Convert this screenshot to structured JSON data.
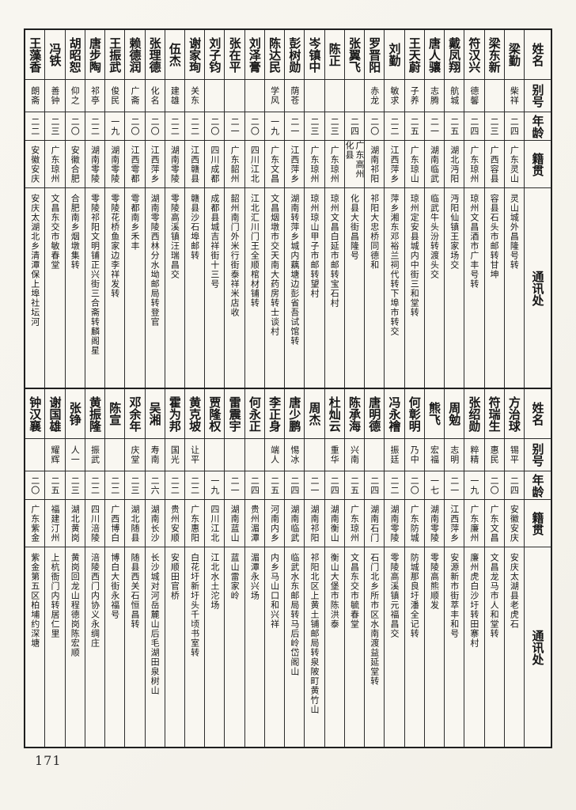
{
  "page_number": "171",
  "table": {
    "headers": {
      "name": "姓名",
      "alias": "别号",
      "age": "年龄",
      "native": "籍贯",
      "address": "通讯处"
    },
    "sections": [
      {
        "entries": [
          {
            "name": "梁勤",
            "alias": "柴祥",
            "age": "二四",
            "native": "广东灵山",
            "address": "灵山城外昌隆号转"
          },
          {
            "name": "梁东新",
            "alias": "",
            "age": "二三",
            "native": "广西容县",
            "address": "容县石头市邮转甘坤"
          },
          {
            "name": "符汉兴",
            "alias": "德馨",
            "age": "二四",
            "native": "广东琼州",
            "address": "琼州文昌酒市广丰号转"
          },
          {
            "name": "戴凤翔",
            "alias": "航城",
            "age": "二五",
            "native": "湖北沔阳",
            "address": "沔阳仙镇王家场交"
          },
          {
            "name": "唐人骧",
            "alias": "志腾",
            "age": "二一",
            "native": "湖南临武",
            "address": "临武牛头汾转渡头交"
          },
          {
            "name": "王天蔚",
            "alias": "子养",
            "age": "二五",
            "native": "广东琼山",
            "address": "琼州定安县城内中街三和堂转"
          },
          {
            "name": "刘勤",
            "alias": "敏求",
            "age": "二二",
            "native": "江西萍乡",
            "address": "萍乡湘东邓裕兰祠代转下埠市转交"
          },
          {
            "name": "罗晋阳",
            "alias": "赤龙",
            "age": "二〇",
            "native": "湖南祁阳",
            "address": "祁阳大忠桥同德和"
          },
          {
            "name": "张翼飞",
            "alias": "",
            "age": "二四",
            "native": "广东高州化县",
            "address": "化县大街昌隆号"
          },
          {
            "name": "陈正",
            "alias": "",
            "age": "二三",
            "native": "广东琼州",
            "address": "琼州文昌白延市邮转宝石村"
          },
          {
            "name": "岑镇中",
            "alias": "",
            "age": "二三",
            "native": "广东琼州",
            "address": "琼州琼山甲子市邮转望村"
          },
          {
            "name": "彭树勋",
            "alias": "荫苍",
            "age": "二一",
            "native": "江西萍乡",
            "address": "湖南转萍乡城内藕塘边彭省吾试馆转"
          },
          {
            "name": "陈达民",
            "alias": "学风",
            "age": "一九",
            "native": "广东文昌",
            "address": "文昌烟墩市交天南大药房转士谈村"
          },
          {
            "name": "刘泽膏",
            "alias": "",
            "age": "二〇",
            "native": "四川江北",
            "address": "江北汇川门王全顺棺材铺转"
          },
          {
            "name": "张在平",
            "alias": "",
            "age": "二一",
            "native": "广东韶州",
            "address": "韶州南门外米行街泰祥米店收"
          },
          {
            "name": "刘子钧",
            "alias": "",
            "age": "二〇",
            "native": "四川成都",
            "address": "成都县城吉祥街十三号"
          },
          {
            "name": "谢家珣",
            "alias": "关东",
            "age": "二二",
            "native": "江西赣县",
            "address": "赣县沙石埠邮转"
          },
          {
            "name": "伍杰",
            "alias": "建雄",
            "age": "二二",
            "native": "湖南零陵",
            "address": "零陵高溪镇汪瑞昌交"
          },
          {
            "name": "张理德",
            "alias": "化名",
            "age": "二〇",
            "native": "江西萍乡",
            "address": "湖南零陵西林分水坳邮局转登官"
          },
          {
            "name": "赖德润",
            "alias": "广斋",
            "age": "二〇",
            "native": "江西雩都",
            "address": "雩都南乡禾丰"
          },
          {
            "name": "王振武",
            "alias": "俊民",
            "age": "一九",
            "native": "湖南零陵",
            "address": "零陵花桥鱼家边李祥发转"
          },
          {
            "name": "唐步陶",
            "alias": "祁亭",
            "age": "二二",
            "native": "湖南零陵",
            "address": "零陵祁阳文明铺正兴街三合斋转麟阁星"
          },
          {
            "name": "胡昭恕",
            "alias": "仰之",
            "age": "二〇",
            "native": "安徽合肥",
            "address": "合肥南乡烟墩集转"
          },
          {
            "name": "冯铁",
            "alias": "善钟",
            "age": "二三",
            "native": "广东琼州",
            "address": "文昌东交市敏春堂"
          },
          {
            "name": "王藻香",
            "alias": "朗斋",
            "age": "二二",
            "native": "安徽安庆",
            "address": "安庆太湖北乡清潭保上埠社坛河"
          }
        ]
      },
      {
        "entries": [
          {
            "name": "方治球",
            "alias": "锡平",
            "age": "二四",
            "native": "安徽安庆",
            "address": "安庆太湖县老虎石"
          },
          {
            "name": "符瑞生",
            "alias": "惠民",
            "age": "二〇",
            "native": "广东文昌",
            "address": "文昌龙马市人和堂转"
          },
          {
            "name": "张绍勋",
            "alias": "粹精",
            "age": "一九",
            "native": "广东廉州",
            "address": "廉州虎白沙圩转田寨村"
          },
          {
            "name": "周勉",
            "alias": "志明",
            "age": "二一",
            "native": "江西萍乡",
            "address": "安源新市街萃丰和号"
          },
          {
            "name": "熊飞",
            "alias": "宏福",
            "age": "一七",
            "native": "湖南零陵",
            "address": "零陵高熊顺发"
          },
          {
            "name": "何彰明",
            "alias": "乃中",
            "age": "二〇",
            "native": "广东防城",
            "address": "防城那良圩潘全记转"
          },
          {
            "name": "冯永襘",
            "alias": "振廷",
            "age": "二二",
            "native": "湖南零陵",
            "address": "零陵高溪镇元福昌交"
          },
          {
            "name": "唐明德",
            "alias": "",
            "age": "二四",
            "native": "湖南石门",
            "address": "石门北乡所市区水南渡益延堂转"
          },
          {
            "name": "陈承海",
            "alias": "兴南",
            "age": "二五",
            "native": "广东琼州",
            "address": "文昌东交市毓春堂"
          },
          {
            "name": "杜灿云",
            "alias": "重华",
            "age": "二四",
            "native": "湖南衡山",
            "address": "衡山大堡市陈洪泰"
          },
          {
            "name": "周杰",
            "alias": "",
            "age": "二一",
            "native": "湖南祁阳",
            "address": "祁阳北区上黄土铺邮局转泉陂町黄竹山"
          },
          {
            "name": "唐少鹏",
            "alias": "惕冰",
            "age": "二四",
            "native": "湖南临武",
            "address": "临武水东邮局转马后岭岱阁山"
          },
          {
            "name": "李正身",
            "alias": "端人",
            "age": "二五",
            "native": "河南内乡",
            "address": "内乡马山口和兴祥"
          },
          {
            "name": "何永正",
            "alias": "",
            "age": "二四",
            "native": "贵州湄潭",
            "address": "湄潭永兴场"
          },
          {
            "name": "雷震宇",
            "alias": "",
            "age": "二一",
            "native": "湖南蓝山",
            "address": "蓝山雷家岭"
          },
          {
            "name": "贾隆权",
            "alias": "",
            "age": "一九",
            "native": "四川江北",
            "address": "江北水土沱场"
          },
          {
            "name": "黄克坡",
            "alias": "让平",
            "age": "二二",
            "native": "广东惠阳",
            "address": "白花圩新圩头千顷书室转"
          },
          {
            "name": "霍为邦",
            "alias": "国光",
            "age": "二二",
            "native": "贵州安顺",
            "address": "安顺田官桥"
          },
          {
            "name": "吴湘",
            "alias": "寿南",
            "age": "二六",
            "native": "湖南长沙",
            "address": "长沙城对河岳麓山后毛湖田泉树山"
          },
          {
            "name": "邓余年",
            "alias": "庆堂",
            "age": "二三",
            "native": "湖北随县",
            "address": "随县西关石恒昌转"
          },
          {
            "name": "陈宣",
            "alias": "",
            "age": "二二",
            "native": "广西博白",
            "address": "博白大街永福号"
          },
          {
            "name": "黄振隆",
            "alias": "振武",
            "age": "二二",
            "native": "四川涪陵",
            "address": "涪陵西门内协义永绸庄"
          },
          {
            "name": "张铮",
            "alias": "人一",
            "age": "二三",
            "native": "湖北黄岗",
            "address": "黄岗回龙山程德岗陈宏顺"
          },
          {
            "name": "谢国雄",
            "alias": "耀辉",
            "age": "二五",
            "native": "福建汀州",
            "address": "上杭衙门内转居仁里"
          },
          {
            "name": "钟汉襄",
            "alias": "",
            "age": "二〇",
            "native": "广东紫金",
            "address": "紫金第五区柏埔约深塘"
          }
        ]
      }
    ]
  }
}
